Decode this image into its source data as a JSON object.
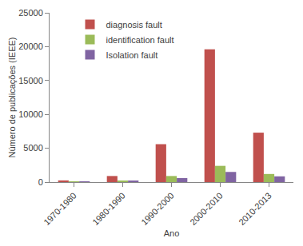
{
  "chart_data": {
    "type": "bar",
    "x_label": "Ano",
    "y_label": "Número de publicações (IEEE)",
    "categories": [
      "1970-1980",
      "1980-1990",
      "1990-2000",
      "2000-2010",
      "2010-2013"
    ],
    "series": [
      {
        "name": "diagnosis fault",
        "color": "#c0504d",
        "values": [
          250,
          900,
          5600,
          19600,
          7300
        ]
      },
      {
        "name": "identification fault",
        "color": "#9bbb59",
        "values": [
          30,
          200,
          900,
          2400,
          1200
        ]
      },
      {
        "name": "Isolation fault",
        "color": "#8064a2",
        "values": [
          20,
          150,
          600,
          1500,
          850
        ]
      }
    ],
    "ylim": [
      0,
      25000
    ],
    "yticks": [
      0,
      5000,
      10000,
      15000,
      20000,
      25000
    ],
    "grid": false,
    "legend": "top-left"
  }
}
